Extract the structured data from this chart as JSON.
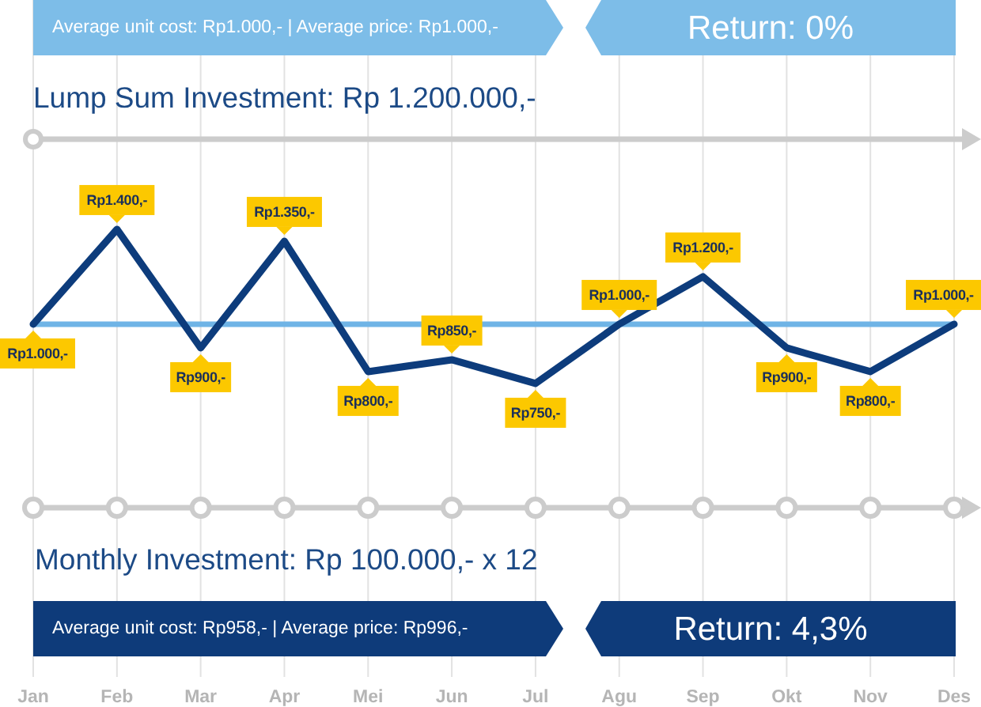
{
  "chart_data": {
    "type": "line",
    "annotations": [
      "Average unit cost: Rp1.000,- | Average price: Rp1.000,-",
      "Return: 0%",
      "Lump Sum Investment: Rp 1.200.000,-",
      "Monthly Investment: Rp 100.000,- x 12",
      "Average unit cost: Rp958,- | Average price: Rp996,-",
      "Return: 4,3%"
    ],
    "categories": [
      "Jan",
      "Feb",
      "Mar",
      "Apr",
      "Mei",
      "Jun",
      "Jul",
      "Agu",
      "Sep",
      "Okt",
      "Nov",
      "Des"
    ],
    "series": [
      {
        "color": "#0d3c7c",
        "values": [
          1000,
          1400,
          900,
          1350,
          800,
          850,
          750,
          1000,
          1200,
          900,
          800,
          1000
        ],
        "value_labels": [
          "Rp1.000,-",
          "Rp1.400,-",
          "Rp900,-",
          "Rp1.350,-",
          "Rp800,-",
          "Rp850,-",
          "Rp750,-",
          "Rp1.000,-",
          "Rp1.200,-",
          "Rp900,-",
          "Rp800,-",
          "Rp1.000,-"
        ]
      }
    ],
    "ref_lines": [
      {
        "axis": "y",
        "value": 1000,
        "color": "#6fb4e6"
      }
    ],
    "grid": "x",
    "tick_labels": "x",
    "marker": "none",
    "line_style": "solid"
  }
}
